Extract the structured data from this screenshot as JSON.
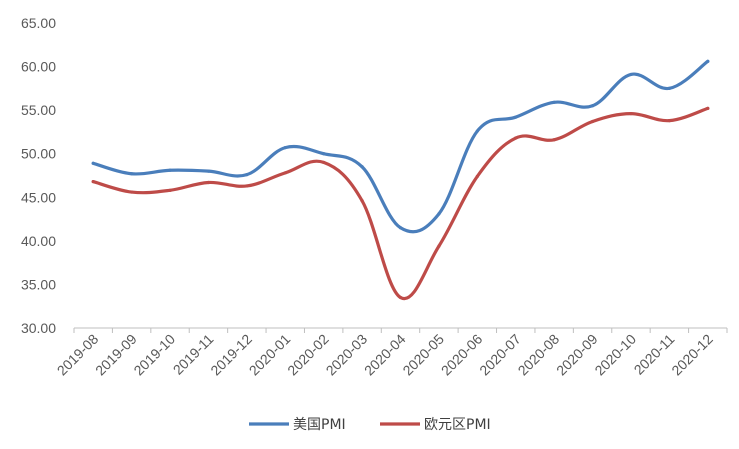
{
  "chart_data": {
    "type": "line",
    "categories": [
      "2019-08",
      "2019-09",
      "2019-10",
      "2019-11",
      "2019-12",
      "2020-01",
      "2020-02",
      "2020-03",
      "2020-04",
      "2020-05",
      "2020-06",
      "2020-07",
      "2020-08",
      "2020-09",
      "2020-10",
      "2020-11",
      "2020-12"
    ],
    "series": [
      {
        "name": "美国PMI",
        "color": "#4a7ebb",
        "values": [
          48.9,
          47.7,
          48.1,
          48.0,
          47.6,
          50.7,
          50.0,
          48.5,
          41.5,
          43.1,
          52.6,
          54.2,
          55.9,
          55.5,
          59.1,
          57.5,
          60.6
        ]
      },
      {
        "name": "欧元区PMI",
        "color": "#be4b48",
        "values": [
          46.8,
          45.6,
          45.8,
          46.7,
          46.3,
          47.8,
          49.0,
          44.6,
          33.5,
          39.4,
          47.4,
          51.8,
          51.6,
          53.7,
          54.6,
          53.8,
          55.2
        ]
      }
    ],
    "yticks": [
      "30.00",
      "35.00",
      "40.00",
      "45.00",
      "50.00",
      "55.00",
      "60.00",
      "65.00"
    ],
    "ylim": [
      30,
      65
    ],
    "grid": false,
    "legend": "bottom-center",
    "xlabel": "",
    "ylabel": ""
  }
}
